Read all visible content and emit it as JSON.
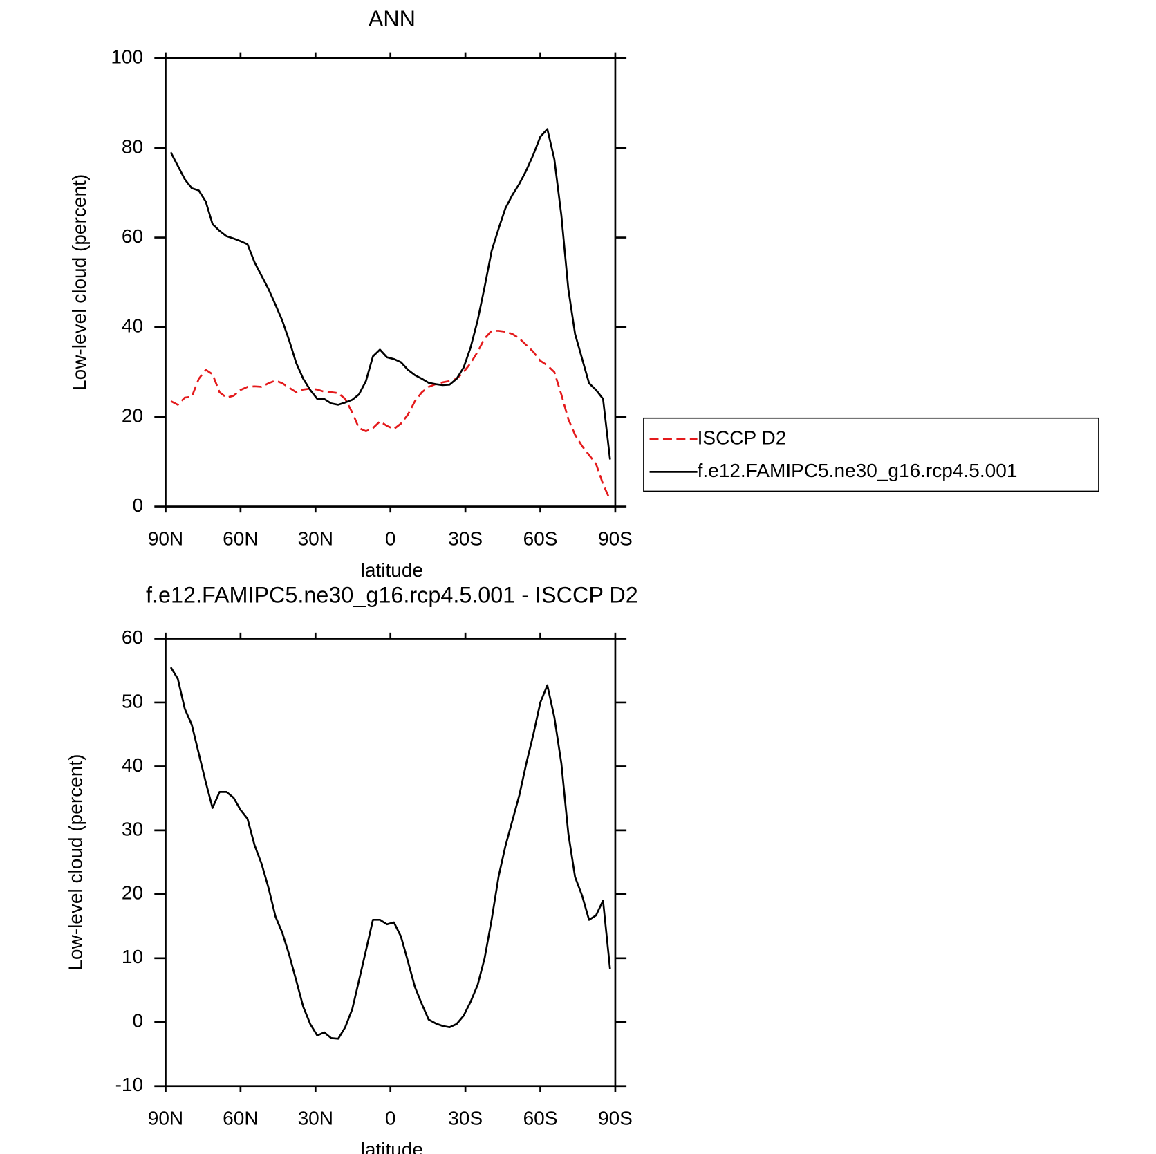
{
  "chart_data": [
    {
      "type": "line",
      "title": "ANN",
      "xlabel": "latitude",
      "ylabel": "Low-level cloud (percent)",
      "x": [
        87.9,
        85.1,
        82.3,
        79.5,
        76.7,
        73.9,
        71.2,
        68.4,
        65.6,
        62.8,
        60.0,
        57.2,
        54.4,
        51.6,
        48.8,
        46.0,
        43.3,
        40.5,
        37.7,
        34.9,
        32.1,
        29.3,
        26.5,
        23.7,
        20.9,
        18.1,
        15.3,
        12.6,
        9.8,
        7.0,
        4.2,
        1.4,
        -1.4,
        -4.2,
        -7.0,
        -9.8,
        -12.6,
        -15.3,
        -18.1,
        -20.9,
        -23.7,
        -26.5,
        -29.3,
        -32.1,
        -34.9,
        -37.7,
        -40.5,
        -43.3,
        -46.0,
        -48.8,
        -51.6,
        -54.4,
        -57.2,
        -60.0,
        -62.8,
        -65.6,
        -68.4,
        -71.2,
        -73.9,
        -76.7,
        -79.5,
        -82.3,
        -85.1,
        -87.9
      ],
      "series": [
        {
          "name": "ISCCP D2",
          "color": "#e41a1c",
          "dash": "dashed",
          "values": [
            23.5,
            22.7,
            24.3,
            24.5,
            28.5,
            30.5,
            29.5,
            25.5,
            24.3,
            24.7,
            26,
            26.7,
            26.8,
            26.7,
            27.5,
            28.1,
            27.5,
            26.5,
            25.5,
            26.1,
            26.3,
            26.1,
            25.6,
            25.5,
            25.3,
            24,
            21,
            17.5,
            16.8,
            17.5,
            19,
            18,
            17.3,
            18.5,
            20.5,
            23.5,
            25.5,
            26.7,
            27.3,
            27.7,
            28,
            28.5,
            30,
            32,
            34.5,
            37.5,
            39.2,
            39.2,
            39,
            38.5,
            37.5,
            36,
            34.5,
            32.5,
            31.5,
            30,
            25,
            19.5,
            16,
            13.5,
            11.5,
            9.5,
            5,
            1.5
          ]
        },
        {
          "name": "f.e12.FAMIPC5.ne30_g16.rcp4.5.001",
          "color": "#000000",
          "dash": "solid",
          "values": [
            79,
            76,
            73,
            71,
            70.5,
            68,
            63,
            61.5,
            60.3,
            59.8,
            59.2,
            58.5,
            54.5,
            51.5,
            48.5,
            45,
            41.5,
            37,
            32,
            28.5,
            26,
            24,
            24,
            23,
            22.7,
            23.2,
            23.8,
            25,
            28,
            33.5,
            35,
            33.3,
            32.9,
            32.2,
            30.5,
            29.3,
            28.5,
            27.6,
            27.3,
            27.1,
            27.2,
            28.5,
            31,
            35.5,
            41.5,
            49,
            57,
            62,
            66.5,
            69.5,
            72,
            75,
            78.5,
            82.5,
            84.2,
            77.5,
            65,
            48.5,
            38.5,
            33,
            27.5,
            26,
            24,
            10.5
          ]
        }
      ],
      "xlim": [
        90,
        -90
      ],
      "xticks": [
        {
          "value": 90,
          "label": "90N"
        },
        {
          "value": 60,
          "label": "60N"
        },
        {
          "value": 30,
          "label": "30N"
        },
        0,
        {
          "value": -30,
          "label": "30S"
        },
        {
          "value": -60,
          "label": "60S"
        },
        {
          "value": -90,
          "label": "90S"
        }
      ],
      "ylim": [
        0,
        100
      ],
      "yticks": [
        0,
        20,
        40,
        60,
        80,
        100
      ],
      "legend": "right"
    },
    {
      "type": "line",
      "title": "f.e12.FAMIPC5.ne30_g16.rcp4.5.001 - ISCCP D2",
      "xlabel": "latitude",
      "ylabel": "Low-level cloud (percent)",
      "x": [
        87.9,
        85.1,
        82.3,
        79.5,
        76.7,
        73.9,
        71.2,
        68.4,
        65.6,
        62.8,
        60.0,
        57.2,
        54.4,
        51.6,
        48.8,
        46.0,
        43.3,
        40.5,
        37.7,
        34.9,
        32.1,
        29.3,
        26.5,
        23.7,
        20.9,
        18.1,
        15.3,
        12.6,
        9.8,
        7.0,
        4.2,
        1.4,
        -1.4,
        -4.2,
        -7.0,
        -9.8,
        -12.6,
        -15.3,
        -18.1,
        -20.9,
        -23.7,
        -26.5,
        -29.3,
        -32.1,
        -34.9,
        -37.7,
        -40.5,
        -43.3,
        -46.0,
        -48.8,
        -51.6,
        -54.4,
        -57.2,
        -60.0,
        -62.8,
        -65.6,
        -68.4,
        -71.2,
        -73.9,
        -76.7,
        -79.5,
        -82.3,
        -85.1,
        -87.9
      ],
      "series": [
        {
          "color": "#000000",
          "dash": "solid",
          "values": [
            55.5,
            53.7,
            49,
            46.5,
            42,
            37.5,
            33.5,
            36,
            36,
            35.1,
            33.2,
            31.8,
            27.7,
            24.8,
            21,
            16.5,
            14,
            10.5,
            6.5,
            2.4,
            -0.3,
            -2.1,
            -1.6,
            -2.5,
            -2.6,
            -0.8,
            2,
            6.5,
            11.2,
            16,
            16,
            15.3,
            15.6,
            13.4,
            9.5,
            5.5,
            2.8,
            0.4,
            -0.2,
            -0.6,
            -0.8,
            -0.3,
            1,
            3.2,
            5.8,
            10,
            16,
            22.8,
            27.5,
            31.5,
            35.5,
            40.5,
            45,
            50,
            52.7,
            47.7,
            40.5,
            29.5,
            22.7,
            19.8,
            16,
            16.7,
            19,
            8.3
          ]
        }
      ],
      "xlim": [
        90,
        -90
      ],
      "xticks": [
        {
          "value": 90,
          "label": "90N"
        },
        {
          "value": 60,
          "label": "60N"
        },
        {
          "value": 30,
          "label": "30N"
        },
        0,
        {
          "value": -30,
          "label": "30S"
        },
        {
          "value": -60,
          "label": "60S"
        },
        {
          "value": -90,
          "label": "90S"
        }
      ],
      "ylim": [
        -10,
        60
      ],
      "yticks": [
        -10,
        0,
        10,
        20,
        30,
        40,
        50,
        60
      ]
    }
  ]
}
